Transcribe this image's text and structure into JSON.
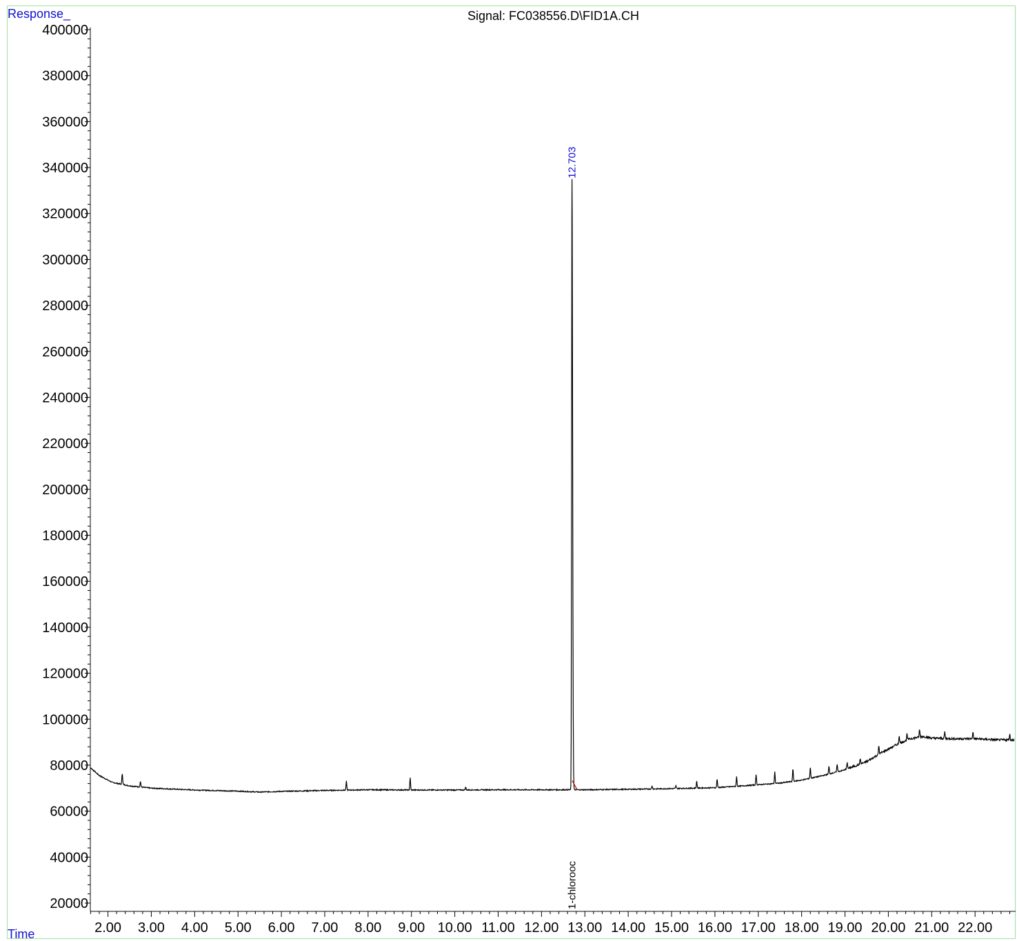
{
  "chart_data": {
    "type": "line",
    "title": "Signal: FC038556.D\\FID1A.CH",
    "ylabel": "Response_",
    "xlabel": "Time",
    "xlim": [
      1.5,
      22.9
    ],
    "ylim": [
      15000,
      400000
    ],
    "x_ticks": [
      2.0,
      3.0,
      4.0,
      5.0,
      6.0,
      7.0,
      8.0,
      9.0,
      10.0,
      11.0,
      12.0,
      13.0,
      14.0,
      15.0,
      16.0,
      17.0,
      18.0,
      19.0,
      20.0,
      21.0,
      22.0
    ],
    "x_tick_labels": [
      "2.00",
      "3.00",
      "4.00",
      "5.00",
      "6.00",
      "7.00",
      "8.00",
      "9.00",
      "10.00",
      "11.00",
      "12.00",
      "13.00",
      "14.00",
      "15.00",
      "16.00",
      "17.00",
      "18.00",
      "19.00",
      "20.00",
      "21.00",
      "22.00"
    ],
    "y_ticks": [
      20000,
      40000,
      60000,
      80000,
      100000,
      120000,
      140000,
      160000,
      180000,
      200000,
      220000,
      240000,
      260000,
      280000,
      300000,
      320000,
      340000,
      360000,
      380000,
      400000
    ],
    "y_tick_labels": [
      "20000",
      "40000",
      "60000",
      "80000",
      "100000",
      "120000",
      "140000",
      "160000",
      "180000",
      "200000",
      "220000",
      "240000",
      "260000",
      "280000",
      "300000",
      "320000",
      "340000",
      "360000",
      "380000",
      "400000"
    ],
    "series": [
      {
        "color": "#000000",
        "baseline": [
          [
            1.5,
            80500
          ],
          [
            1.8,
            75500
          ],
          [
            2.1,
            72500
          ],
          [
            2.5,
            71000
          ],
          [
            3.0,
            70000
          ],
          [
            4.0,
            69200
          ],
          [
            5.0,
            68700
          ],
          [
            5.5,
            68300
          ],
          [
            6.0,
            68600
          ],
          [
            7.0,
            69000
          ],
          [
            8.0,
            69300
          ],
          [
            9.0,
            69200
          ],
          [
            10.0,
            69200
          ],
          [
            11.0,
            69300
          ],
          [
            12.0,
            69300
          ],
          [
            12.6,
            69300
          ],
          [
            13.0,
            69300
          ],
          [
            14.0,
            69500
          ],
          [
            15.0,
            69800
          ],
          [
            16.0,
            70200
          ],
          [
            16.5,
            70800
          ],
          [
            17.0,
            71500
          ],
          [
            17.5,
            72200
          ],
          [
            18.0,
            73500
          ],
          [
            18.5,
            75500
          ],
          [
            19.0,
            78000
          ],
          [
            19.5,
            81500
          ],
          [
            19.8,
            85000
          ],
          [
            20.2,
            89000
          ],
          [
            20.5,
            91500
          ],
          [
            20.8,
            92500
          ],
          [
            21.0,
            91800
          ],
          [
            21.5,
            91500
          ],
          [
            22.0,
            91500
          ],
          [
            22.5,
            91000
          ],
          [
            22.9,
            91000
          ]
        ],
        "peaks": [
          [
            2.33,
            76500
          ],
          [
            2.75,
            73000
          ],
          [
            7.5,
            73000
          ],
          [
            8.97,
            74500
          ],
          [
            10.25,
            70500
          ],
          [
            14.55,
            71000
          ],
          [
            15.1,
            71000
          ],
          [
            15.58,
            73000
          ],
          [
            16.05,
            74000
          ],
          [
            16.5,
            75000
          ],
          [
            16.95,
            76000
          ],
          [
            17.38,
            77000
          ],
          [
            17.8,
            78500
          ],
          [
            18.2,
            79000
          ],
          [
            18.63,
            79500
          ],
          [
            18.82,
            80500
          ],
          [
            19.05,
            81500
          ],
          [
            19.35,
            83000
          ],
          [
            19.78,
            88500
          ],
          [
            20.25,
            93000
          ],
          [
            20.43,
            93500
          ],
          [
            20.72,
            95500
          ],
          [
            21.3,
            94500
          ],
          [
            21.95,
            94500
          ],
          [
            22.8,
            93500
          ]
        ]
      }
    ],
    "main_peak": {
      "x": 12.703,
      "y": 335000,
      "label": "12.703",
      "label_color": "#1010d0"
    },
    "annotation": {
      "x": 12.703,
      "text": "1-chlorooc"
    },
    "grid": false
  }
}
